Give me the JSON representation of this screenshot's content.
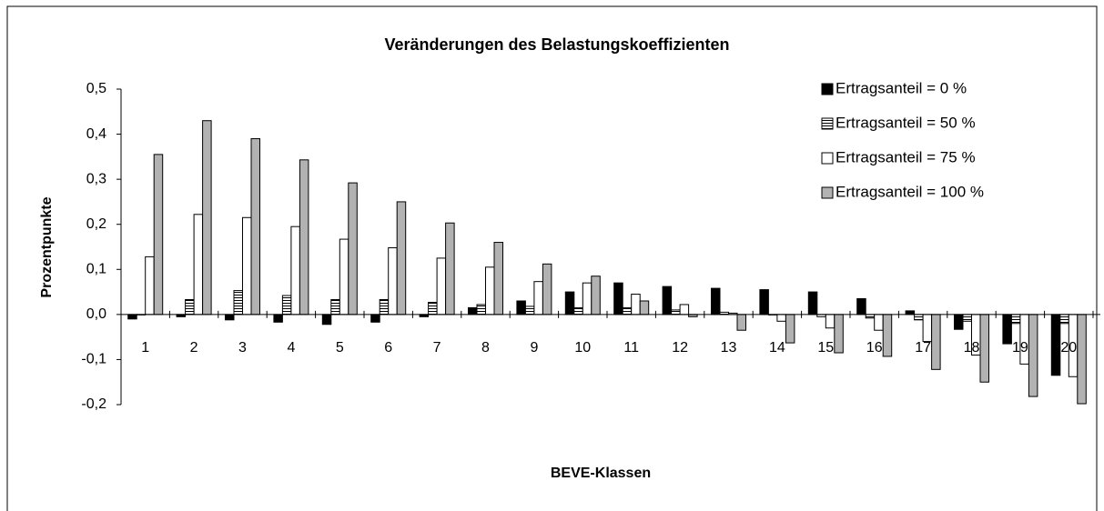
{
  "chart_data": {
    "type": "bar",
    "title": "Veränderungen des Belastungskoeffizienten",
    "x_label": "BEVE-Klassen",
    "y_label": "Prozentpunkte",
    "categories": [
      "1",
      "2",
      "3",
      "4",
      "5",
      "6",
      "7",
      "8",
      "9",
      "10",
      "11",
      "12",
      "13",
      "14",
      "15",
      "16",
      "17",
      "18",
      "19",
      "20"
    ],
    "series": [
      {
        "name": "Ertragsanteil = 0 %",
        "color": "#000000",
        "values": [
          -0.01,
          -0.005,
          -0.012,
          -0.017,
          -0.022,
          -0.017,
          -0.005,
          0.015,
          0.03,
          0.05,
          0.07,
          0.062,
          0.058,
          0.055,
          0.05,
          0.035,
          0.008,
          -0.033,
          -0.065,
          -0.135
        ]
      },
      {
        "name": "Ertragsanteil = 50 %",
        "color": "#ffffff",
        "pattern": "horizontal-lines",
        "values": [
          0,
          0.033,
          0.053,
          0.042,
          0.033,
          0.033,
          0.027,
          0.022,
          0.018,
          0.015,
          0.015,
          0.01,
          0.005,
          0,
          -0.005,
          -0.008,
          -0.012,
          -0.015,
          -0.02,
          -0.02
        ]
      },
      {
        "name": "Ertragsanteil = 75 %",
        "color": "#ffffff",
        "values": [
          0.128,
          0.222,
          0.215,
          0.195,
          0.167,
          0.148,
          0.125,
          0.105,
          0.073,
          0.07,
          0.045,
          0.022,
          0.003,
          -0.015,
          -0.03,
          -0.035,
          -0.06,
          -0.09,
          -0.11,
          -0.138
        ]
      },
      {
        "name": "Ertragsanteil = 100 %",
        "color": "#b2b2b2",
        "values": [
          0.355,
          0.43,
          0.39,
          0.343,
          0.292,
          0.25,
          0.203,
          0.16,
          0.112,
          0.085,
          0.03,
          -0.005,
          -0.035,
          -0.063,
          -0.085,
          -0.093,
          -0.122,
          -0.15,
          -0.182,
          -0.198
        ]
      }
    ],
    "ylim": [
      -0.2,
      0.5
    ],
    "yticks": [
      {
        "value": -0.2,
        "label": "-0,2"
      },
      {
        "value": -0.1,
        "label": "-0,1"
      },
      {
        "value": 0,
        "label": "0,0"
      },
      {
        "value": 0.1,
        "label": "0,1"
      },
      {
        "value": 0.2,
        "label": "0,2"
      },
      {
        "value": 0.3,
        "label": "0,3"
      },
      {
        "value": 0.4,
        "label": "0,4"
      },
      {
        "value": 0.5,
        "label": "0,5"
      }
    ],
    "grid": false,
    "legend": "top-right"
  }
}
